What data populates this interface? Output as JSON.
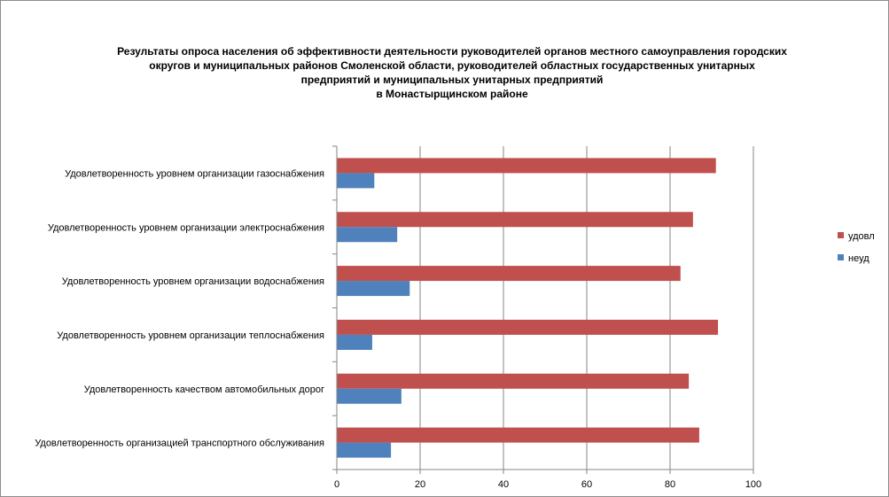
{
  "chart_data": {
    "type": "bar",
    "orientation": "horizontal",
    "title_lines": [
      "Результаты опроса населения об эффективности деятельности руководителей органов местного самоуправления городских",
      "округов и муниципальных районов Смоленской области, руководителей областных государственных унитарных",
      "предприятий и  муниципальных унитарных предприятий",
      "в Монастырщинском районе"
    ],
    "categories": [
      "Удовлетворенность  уровнем  организации газоснабжения",
      "Удовлетворенность  уровнем  организации электроснабжения",
      "Удовлетворенность  уровнем  организации водоснабжения",
      "Удовлетворенность  уровнем  организации теплоснабжения",
      "Удовлетворенность  качеством  автомобильных дорог",
      "Удовлетворенность  организацией  транспортного обслуживания"
    ],
    "series": [
      {
        "name": "удовл",
        "color": "#c0504d",
        "values": [
          91,
          85.5,
          82.5,
          91.5,
          84.5,
          87
        ]
      },
      {
        "name": "неуд",
        "color": "#4f81bd",
        "values": [
          9,
          14.5,
          17.5,
          8.5,
          15.5,
          13
        ]
      }
    ],
    "xlim": [
      0,
      100
    ],
    "xticks": [
      "0",
      "20",
      "40",
      "60",
      "80",
      "100"
    ],
    "grid": "vertical",
    "legend_position": "right",
    "legend_order": [
      "удовл",
      "неуд"
    ]
  }
}
